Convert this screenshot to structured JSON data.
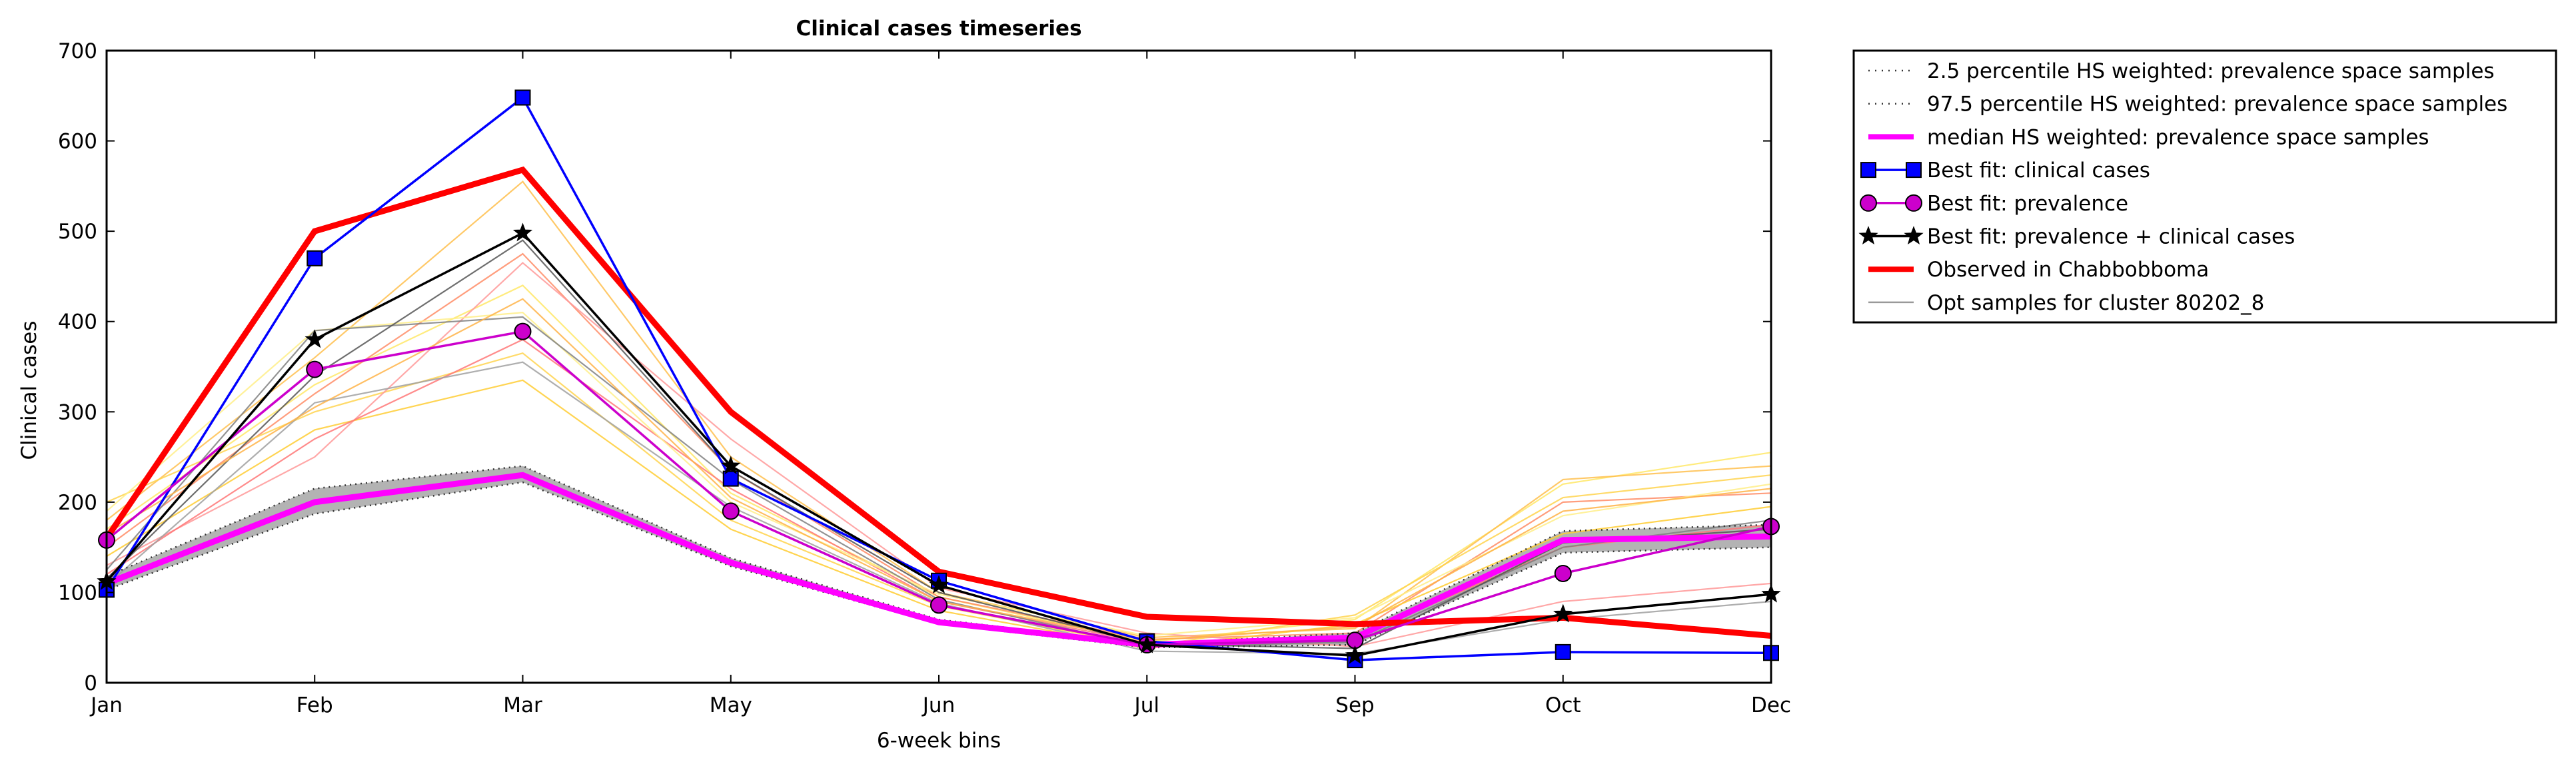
{
  "chart_data": {
    "type": "line",
    "title": "Clinical cases timeseries",
    "xlabel": "6-week bins",
    "ylabel": "Clinical cases",
    "categories": [
      "Jan",
      "Feb",
      "Mar",
      "May",
      "Jun",
      "Jul",
      "Sep",
      "Oct",
      "Dec"
    ],
    "ylim": [
      0,
      700
    ],
    "yticks": [
      0,
      100,
      200,
      300,
      400,
      500,
      600,
      700
    ],
    "grid": false,
    "legend_position": "outside-right-top",
    "series": [
      {
        "name": "2.5 percentile HS weighted: prevalence space samples",
        "role": "band_lower",
        "color": "#555555",
        "style": "dotted",
        "values": [
          103,
          187,
          222,
          129,
          65,
          39,
          42,
          144,
          150
        ]
      },
      {
        "name": "97.5 percentile HS weighted: prevalence space samples",
        "role": "band_upper",
        "color": "#555555",
        "style": "dotted",
        "values": [
          118,
          215,
          240,
          138,
          70,
          43,
          55,
          168,
          175
        ]
      },
      {
        "name": "median HS weighted: prevalence space samples",
        "role": "median",
        "color": "#ff00ff",
        "style": "solid",
        "values": [
          110,
          200,
          230,
          133,
          67,
          42,
          50,
          158,
          162
        ]
      },
      {
        "name": "Best fit: clinical cases",
        "role": "best_fit",
        "color": "#0000ff",
        "marker": "square",
        "values": [
          103,
          470,
          648,
          226,
          113,
          46,
          25,
          34,
          33
        ]
      },
      {
        "name": "Best fit: prevalence",
        "role": "best_fit",
        "color": "#cc00cc",
        "marker": "circle",
        "values": [
          158,
          347,
          389,
          190,
          86,
          42,
          47,
          121,
          173
        ]
      },
      {
        "name": "Best fit: prevalence + clinical cases",
        "role": "best_fit",
        "color": "#000000",
        "marker": "star",
        "values": [
          112,
          380,
          498,
          240,
          108,
          42,
          30,
          76,
          98
        ]
      },
      {
        "name": "Observed in Chabbobboma",
        "role": "observed",
        "color": "#ff0000",
        "style": "solid",
        "values": [
          160,
          500,
          568,
          300,
          123,
          73,
          65,
          72,
          52
        ]
      },
      {
        "name": "Opt samples for cluster 80202_8",
        "role": "samples",
        "color": "#999999",
        "style": "solid"
      }
    ],
    "opt_samples": [
      {
        "color": "#ffe766",
        "values": [
          170,
          330,
          440,
          210,
          95,
          45,
          70,
          220,
          255
        ]
      },
      {
        "color": "#ffc04d",
        "values": [
          180,
          360,
          555,
          250,
          100,
          50,
          60,
          225,
          240
        ]
      },
      {
        "color": "#ff8c66",
        "values": [
          150,
          320,
          475,
          235,
          95,
          48,
          55,
          200,
          210
        ]
      },
      {
        "color": "#ffd34d",
        "values": [
          200,
          300,
          365,
          180,
          85,
          40,
          75,
          205,
          230
        ]
      },
      {
        "color": "#ff9999",
        "values": [
          130,
          250,
          465,
          270,
          105,
          55,
          40,
          90,
          110
        ]
      },
      {
        "color": "#ffcc33",
        "values": [
          140,
          280,
          335,
          170,
          80,
          38,
          65,
          165,
          195
        ]
      },
      {
        "color": "#ff7777",
        "values": [
          120,
          270,
          380,
          215,
          90,
          44,
          50,
          150,
          175
        ]
      },
      {
        "color": "#ffee88",
        "values": [
          190,
          390,
          410,
          200,
          98,
          52,
          72,
          185,
          220
        ]
      },
      {
        "color": "#808080",
        "values": [
          125,
          390,
          405,
          225,
          92,
          40,
          45,
          150,
          180
        ]
      },
      {
        "color": "#555555",
        "values": [
          115,
          340,
          490,
          235,
          100,
          43,
          38,
          155,
          170
        ]
      },
      {
        "color": "#a0a0a0",
        "values": [
          108,
          310,
          355,
          195,
          88,
          35,
          32,
          70,
          90
        ]
      },
      {
        "color": "#ffb347",
        "values": [
          165,
          305,
          425,
          205,
          90,
          47,
          62,
          190,
          215
        ]
      }
    ]
  }
}
